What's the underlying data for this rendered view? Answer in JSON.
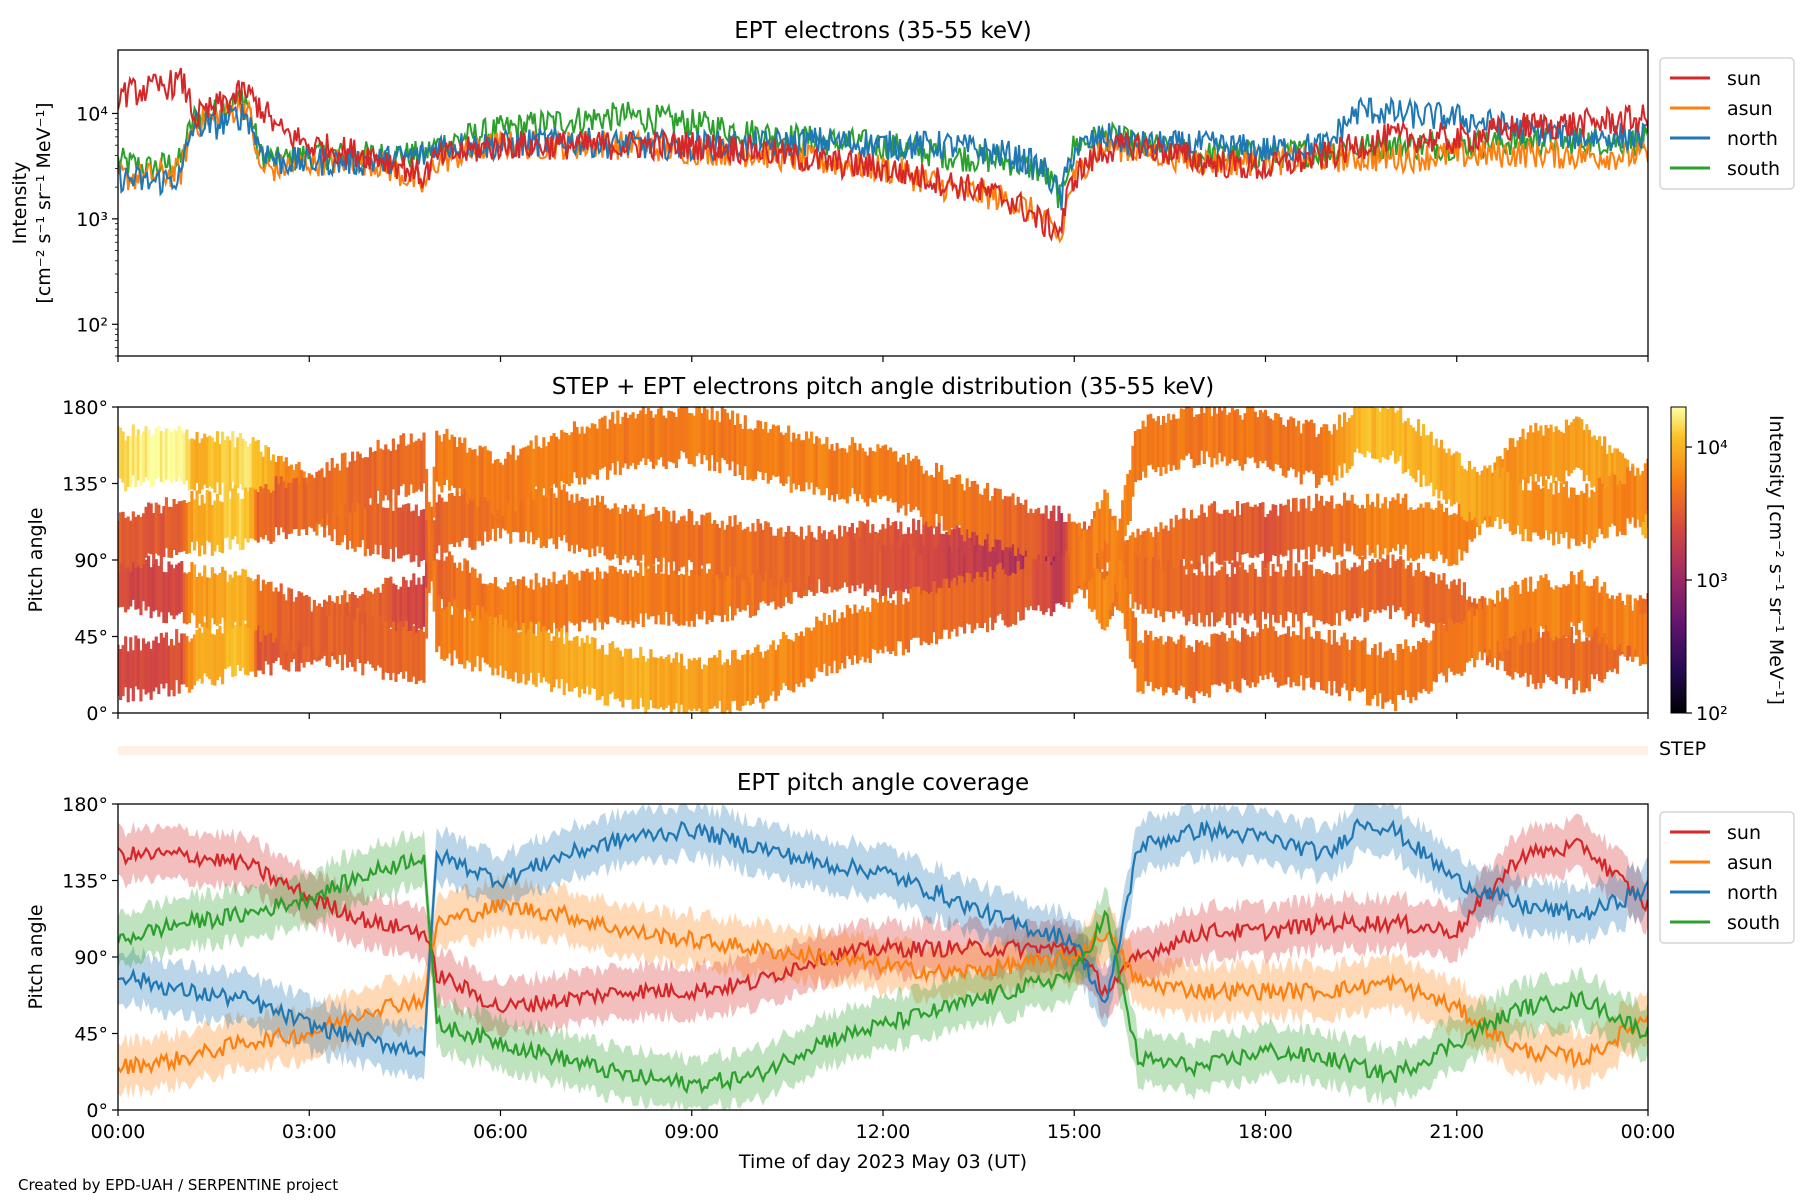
{
  "footer": {
    "credit": "Created by EPD-UAH / SERPENTINE project"
  },
  "colors": {
    "sun": "#d62728",
    "asun": "#ff7f0e",
    "north": "#1f77b4",
    "south": "#2ca02c"
  },
  "chart_data": [
    {
      "type": "line",
      "title": "EPT electrons (35-55 keV)",
      "ylabel_line1": "Intensity",
      "ylabel_line2": "[cm⁻² s⁻¹ sr⁻¹ MeV⁻¹]",
      "yscale": "log",
      "ylim": [
        50,
        40000
      ],
      "yticks": [
        {
          "value": 100,
          "label": "10²"
        },
        {
          "value": 1000,
          "label": "10³"
        },
        {
          "value": 10000,
          "label": "10⁴"
        }
      ],
      "xlim": [
        0,
        24
      ],
      "legend": "outside-right",
      "series": [
        {
          "name": "sun",
          "x": [
            0,
            0.5,
            1,
            1.2,
            1.5,
            2,
            2.2,
            2.5,
            3,
            4,
            4.8,
            5,
            6,
            7,
            8,
            9,
            10,
            11,
            12,
            13,
            14,
            14.5,
            14.8,
            15,
            15.5,
            16,
            17,
            18,
            19,
            20,
            21,
            22,
            23,
            24
          ],
          "y": [
            15000,
            17000,
            20000,
            9000,
            11000,
            16000,
            12000,
            7000,
            5000,
            4000,
            2500,
            3800,
            5000,
            5000,
            5000,
            5000,
            4500,
            3500,
            3000,
            2200,
            1500,
            900,
            800,
            2500,
            4500,
            5000,
            3500,
            3000,
            4000,
            6000,
            5500,
            7500,
            8000,
            9000
          ]
        },
        {
          "name": "asun",
          "x": [
            0,
            0.5,
            1,
            1.2,
            1.5,
            2,
            2.2,
            2.5,
            3,
            4,
            4.8,
            5,
            6,
            7,
            8,
            9,
            10,
            11,
            12,
            13,
            14,
            14.5,
            14.8,
            15,
            15.5,
            16,
            17,
            18,
            19,
            20,
            21,
            22,
            23,
            24
          ],
          "y": [
            2500,
            2500,
            2800,
            8000,
            9000,
            12000,
            3000,
            3000,
            3500,
            3500,
            2000,
            3500,
            5000,
            5000,
            5000,
            4500,
            4200,
            3500,
            3000,
            2000,
            1500,
            1000,
            600,
            2500,
            5000,
            4500,
            3500,
            3500,
            3800,
            3800,
            4000,
            4200,
            4000,
            4000
          ]
        },
        {
          "name": "north",
          "x": [
            0,
            0.5,
            1,
            1.2,
            1.5,
            2,
            2.2,
            2.5,
            3,
            4,
            4.8,
            5,
            6,
            7,
            8,
            9,
            10,
            11,
            12,
            13,
            14,
            14.5,
            14.8,
            15,
            15.5,
            16,
            17,
            18,
            19,
            19.5,
            20,
            21,
            22,
            23,
            24
          ],
          "y": [
            2500,
            2200,
            2500,
            8000,
            7500,
            10000,
            5000,
            3500,
            3500,
            3500,
            4000,
            5000,
            5000,
            5500,
            5000,
            5000,
            5000,
            5500,
            5000,
            5000,
            4000,
            3000,
            1500,
            4500,
            6000,
            5000,
            5000,
            4500,
            5000,
            11000,
            10000,
            9000,
            7000,
            6000,
            6000
          ]
        },
        {
          "name": "south",
          "x": [
            0,
            0.5,
            1,
            1.2,
            1.5,
            2,
            2.2,
            2.5,
            3,
            4,
            4.8,
            5,
            6,
            7,
            8,
            9,
            10,
            11,
            12,
            13,
            14,
            14.5,
            14.8,
            15,
            15.5,
            16,
            17,
            18,
            19,
            20,
            21,
            22,
            23,
            24
          ],
          "y": [
            3500,
            3000,
            3500,
            9000,
            10000,
            14000,
            4000,
            3500,
            4000,
            4000,
            4000,
            5000,
            7000,
            8500,
            9500,
            8000,
            6500,
            5500,
            5000,
            4000,
            3500,
            2800,
            1500,
            5000,
            6000,
            5000,
            4000,
            4000,
            4500,
            5000,
            5000,
            5500,
            5500,
            5500
          ]
        }
      ]
    },
    {
      "type": "heatmap",
      "title": "STEP + EPT electrons pitch angle distribution (35-55 keV)",
      "ylabel": "Pitch angle",
      "ylim": [
        0,
        180
      ],
      "yticks": [
        "0°",
        "45°",
        "90°",
        "135°",
        "180°"
      ],
      "colorbar": {
        "label": "Intensity [cm⁻² s⁻¹ sr⁻¹ MeV⁻¹]",
        "scale": "log",
        "range": [
          100,
          20000
        ],
        "ticks": [
          "10²",
          "10³",
          "10⁴"
        ],
        "colormap": "inferno"
      },
      "step_strip_label": "STEP"
    },
    {
      "type": "line",
      "title": "EPT pitch angle coverage",
      "ylabel": "Pitch angle",
      "ylim": [
        0,
        180
      ],
      "yticks": [
        "0°",
        "45°",
        "90°",
        "135°",
        "180°"
      ],
      "xlabel": "Time of day 2023 May 03 (UT)",
      "xticks": [
        "00:00",
        "03:00",
        "06:00",
        "09:00",
        "12:00",
        "15:00",
        "18:00",
        "21:00",
        "00:00"
      ],
      "xlim": [
        0,
        24
      ],
      "legend": "outside-right",
      "band_halfwidth_deg": 15,
      "series": [
        {
          "name": "sun",
          "x": [
            0,
            1,
            2,
            3,
            4,
            4.8,
            5,
            6,
            7,
            8,
            9,
            10,
            11,
            12,
            13,
            14,
            15,
            15.5,
            16,
            17,
            18,
            19,
            20,
            21,
            22,
            23,
            24
          ],
          "y": [
            150,
            150,
            145,
            125,
            110,
            105,
            80,
            60,
            65,
            70,
            70,
            75,
            90,
            95,
            95,
            95,
            95,
            70,
            90,
            105,
            105,
            110,
            110,
            105,
            150,
            155,
            120
          ]
        },
        {
          "name": "asun",
          "x": [
            0,
            1,
            2,
            3,
            4,
            4.8,
            5,
            6,
            7,
            8,
            9,
            10,
            11,
            12,
            13,
            14,
            15,
            15.5,
            16,
            17,
            18,
            19,
            20,
            21,
            22,
            23,
            24
          ],
          "y": [
            25,
            30,
            40,
            45,
            60,
            65,
            110,
            120,
            115,
            105,
            100,
            95,
            90,
            85,
            80,
            85,
            90,
            105,
            75,
            70,
            70,
            70,
            75,
            60,
            35,
            30,
            55
          ]
        },
        {
          "name": "north",
          "x": [
            0,
            1,
            2,
            3,
            4,
            4.8,
            5,
            6,
            7,
            8,
            9,
            10,
            11,
            12,
            13,
            14,
            15,
            15.5,
            16,
            17,
            18,
            19,
            19.5,
            20,
            21,
            22,
            23,
            24
          ],
          "y": [
            80,
            70,
            65,
            50,
            40,
            35,
            150,
            135,
            150,
            160,
            165,
            155,
            145,
            140,
            125,
            110,
            100,
            60,
            155,
            165,
            160,
            150,
            170,
            165,
            135,
            120,
            115,
            130
          ]
        },
        {
          "name": "south",
          "x": [
            0,
            1,
            2,
            3,
            4,
            4.8,
            5,
            6,
            7,
            8,
            9,
            10,
            11,
            12,
            13,
            14,
            15,
            15.5,
            16,
            17,
            18,
            19,
            20,
            21,
            22,
            23,
            24
          ],
          "y": [
            100,
            110,
            115,
            125,
            140,
            150,
            50,
            40,
            30,
            20,
            15,
            20,
            40,
            50,
            60,
            70,
            80,
            115,
            30,
            25,
            35,
            30,
            20,
            40,
            60,
            65,
            45
          ]
        }
      ]
    }
  ]
}
